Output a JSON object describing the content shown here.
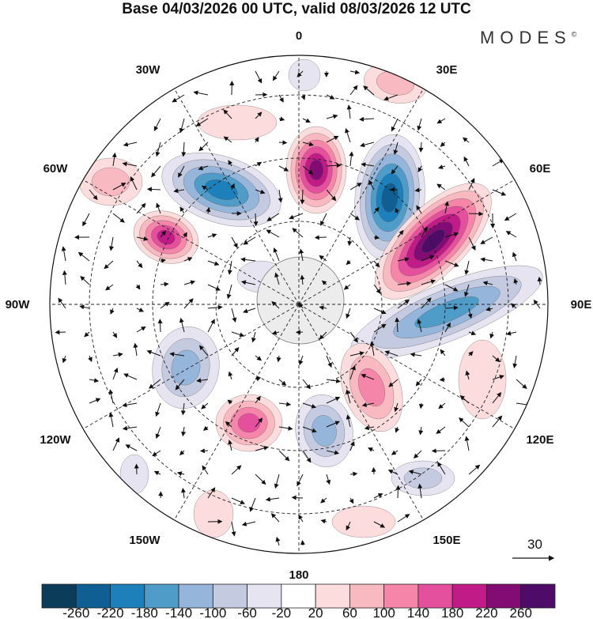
{
  "title": "Base 04/03/2026 00 UTC, valid 08/03/2026 12 UTC",
  "logo": "MODES",
  "logo_mark": "©",
  "longitude_labels": [
    "0",
    "30E",
    "60E",
    "90E",
    "120E",
    "150E",
    "180",
    "150W",
    "120W",
    "90W",
    "60W",
    "30W"
  ],
  "reference_vector": {
    "label": "30"
  },
  "colorbar": {
    "colors": [
      "#0b3c5a",
      "#0f5f94",
      "#1d80bb",
      "#4f9cc9",
      "#95b6da",
      "#c4cbe1",
      "#e6e4f0",
      "#ffffff",
      "#fcdcdc",
      "#f9b9c1",
      "#f586a9",
      "#e5509d",
      "#c01b87",
      "#820b74",
      "#4e0b67"
    ],
    "tick_labels": [
      "-260",
      "-220",
      "-180",
      "-140",
      "-100",
      "-60",
      "-20",
      "20",
      "60",
      "100",
      "140",
      "180",
      "220",
      "260"
    ]
  }
}
